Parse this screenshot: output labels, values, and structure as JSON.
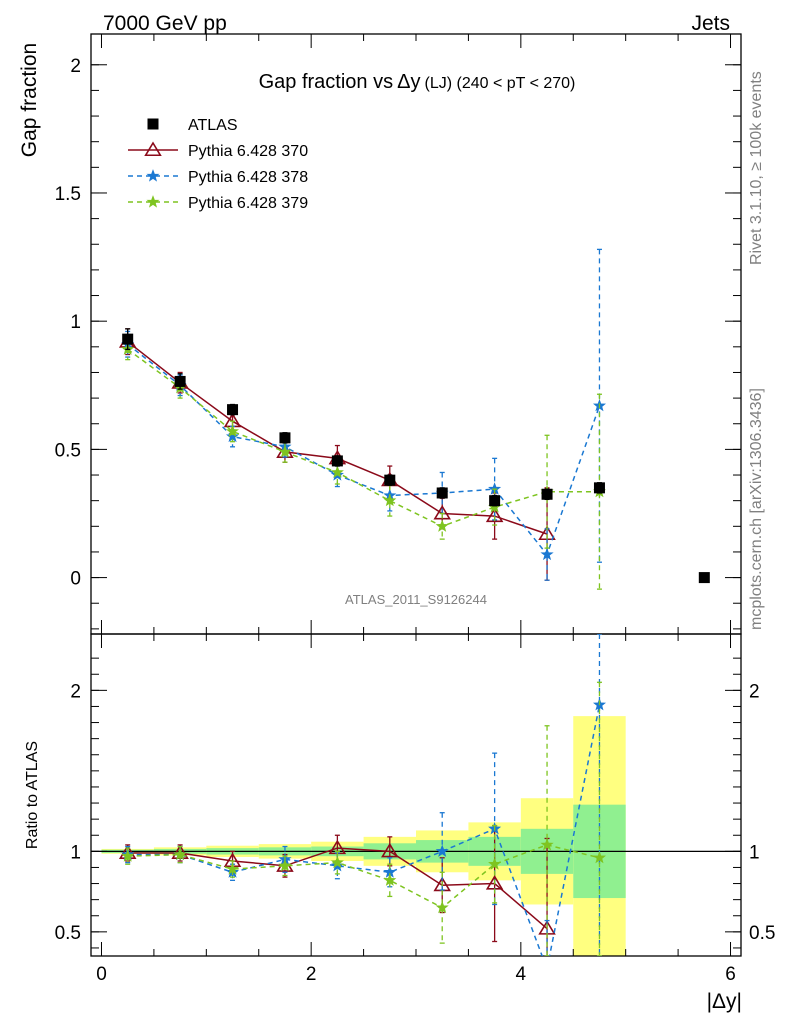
{
  "header": {
    "left": "7000 GeV pp",
    "right": "Jets"
  },
  "side_labels": {
    "rivet": "Rivet 3.1.10, ≥ 100k events",
    "mcplots": "mcplots.cern.ch [arXiv:1306.3436]"
  },
  "analysis_id": "ATLAS_2011_S9126244",
  "chart_data": [
    {
      "type": "scatter",
      "title_main": "Gap fraction vs",
      "title_symbol": "Δy",
      "title_sub": "(LJ) (240 < pT < 270)",
      "ylabel": "Gap fraction",
      "xlim": [
        -0.1,
        6.1
      ],
      "ylim": [
        -0.22,
        2.12
      ],
      "x_ticks": [
        0,
        2,
        4,
        6
      ],
      "y_ticks": [
        0,
        0.5,
        1,
        1.5,
        2
      ],
      "y_tick_labels": [
        "0",
        "0.5",
        "1",
        "1.5",
        "2"
      ],
      "legend_position": "top-left",
      "x": [
        0.25,
        0.75,
        1.25,
        1.75,
        2.25,
        2.75,
        3.25,
        3.75,
        4.25,
        4.75,
        5.75
      ],
      "series": [
        {
          "name": "ATLAS",
          "marker": "square",
          "color": "#000000",
          "values": [
            0.93,
            0.765,
            0.655,
            0.545,
            0.455,
            0.38,
            0.33,
            0.3,
            0.325,
            0.35,
            0.0
          ],
          "err": [
            0.04,
            0.03,
            0.02,
            0.02,
            0.02,
            0.02,
            0.02,
            0.02,
            0.02,
            0.02,
            0.0
          ]
        },
        {
          "name": "Pythia 6.428 370",
          "marker": "triangle",
          "color": "#8b0a1a",
          "dash": "",
          "values": [
            0.92,
            0.76,
            0.61,
            0.49,
            0.465,
            0.38,
            0.25,
            0.24,
            0.17
          ],
          "err": [
            0.05,
            0.04,
            0.04,
            0.04,
            0.05,
            0.055,
            0.06,
            0.09,
            0.18
          ]
        },
        {
          "name": "Pythia 6.428 378",
          "marker": "star",
          "color": "#1a78d2",
          "dash": "5,4",
          "values": [
            0.91,
            0.75,
            0.55,
            0.51,
            0.4,
            0.32,
            0.33,
            0.345,
            0.09,
            0.67
          ],
          "err": [
            0.05,
            0.04,
            0.04,
            0.04,
            0.045,
            0.06,
            0.08,
            0.12,
            0.1,
            0.61
          ]
        },
        {
          "name": "Pythia 6.428 379",
          "marker": "star",
          "color": "#7ec420",
          "dash": "5,4",
          "values": [
            0.89,
            0.74,
            0.57,
            0.49,
            0.41,
            0.3,
            0.2,
            0.275,
            0.335,
            0.335
          ],
          "err": [
            0.04,
            0.04,
            0.04,
            0.04,
            0.045,
            0.06,
            0.05,
            0.07,
            0.22,
            0.38
          ]
        }
      ]
    },
    {
      "type": "scatter",
      "ylabel": "Ratio to ATLAS",
      "xlabel": "|Δy|",
      "xlim": [
        -0.1,
        6.1
      ],
      "ylim": [
        0.35,
        2.35
      ],
      "x_ticks": [
        0,
        2,
        4,
        6
      ],
      "y_ticks": [
        0.5,
        1,
        2
      ],
      "y_tick_labels": [
        "0.5",
        "1",
        "2"
      ],
      "reference_line": 1,
      "bins": [
        [
          0,
          0.5
        ],
        [
          0.5,
          1
        ],
        [
          1,
          1.5
        ],
        [
          1.5,
          2
        ],
        [
          2,
          2.5
        ],
        [
          2.5,
          3
        ],
        [
          3,
          3.5
        ],
        [
          3.5,
          4
        ],
        [
          4,
          4.5
        ],
        [
          4.5,
          5
        ]
      ],
      "band_green": [
        [
          0.99,
          1.01
        ],
        [
          0.985,
          1.015
        ],
        [
          0.98,
          1.02
        ],
        [
          0.975,
          1.025
        ],
        [
          0.97,
          1.03
        ],
        [
          0.95,
          1.05
        ],
        [
          0.93,
          1.07
        ],
        [
          0.91,
          1.09
        ],
        [
          0.86,
          1.14
        ],
        [
          0.71,
          1.29
        ]
      ],
      "band_yellow": [
        [
          0.985,
          1.015
        ],
        [
          0.975,
          1.025
        ],
        [
          0.965,
          1.035
        ],
        [
          0.955,
          1.045
        ],
        [
          0.94,
          1.06
        ],
        [
          0.91,
          1.09
        ],
        [
          0.87,
          1.13
        ],
        [
          0.82,
          1.18
        ],
        [
          0.67,
          1.33
        ],
        [
          0.3,
          1.84
        ]
      ],
      "x": [
        0.25,
        0.75,
        1.25,
        1.75,
        2.25,
        2.75,
        3.25,
        3.75,
        4.25,
        4.75
      ],
      "series": [
        {
          "name": "Pythia 6.428 370",
          "marker": "triangle",
          "color": "#8b0a1a",
          "dash": "",
          "values": [
            0.99,
            0.99,
            0.94,
            0.91,
            1.02,
            1.0,
            0.79,
            0.8,
            0.52
          ],
          "err": [
            0.05,
            0.05,
            0.06,
            0.07,
            0.08,
            0.09,
            0.17,
            0.36,
            0.56
          ]
        },
        {
          "name": "Pythia 6.428 378",
          "marker": "star",
          "color": "#1a78d2",
          "dash": "5,4",
          "values": [
            0.98,
            0.98,
            0.87,
            0.95,
            0.91,
            0.87,
            1.0,
            1.14,
            0.27,
            1.91
          ],
          "err": [
            0.05,
            0.05,
            0.05,
            0.08,
            0.08,
            0.09,
            0.24,
            0.47,
            0.3,
            1.7
          ]
        },
        {
          "name": "Pythia 6.428 379",
          "marker": "star",
          "color": "#7ec420",
          "dash": "5,4",
          "values": [
            0.97,
            0.98,
            0.89,
            0.91,
            0.93,
            0.82,
            0.65,
            0.92,
            1.04,
            0.96
          ],
          "err": [
            0.05,
            0.05,
            0.05,
            0.06,
            0.07,
            0.1,
            0.22,
            0.24,
            0.74,
            1.09
          ]
        }
      ]
    }
  ]
}
